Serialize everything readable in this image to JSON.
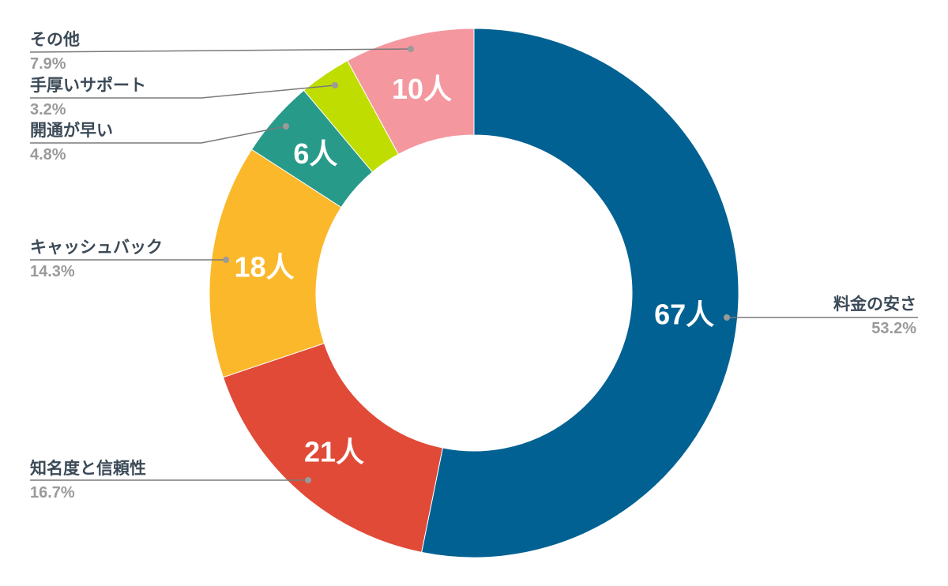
{
  "chart_data": {
    "type": "pie",
    "donut": true,
    "legend": "callouts",
    "slices": [
      {
        "name": "料金の安さ",
        "value": 67,
        "value_label": "67人",
        "percent_label": "53.2%",
        "color": "#006192"
      },
      {
        "name": "知名度と信頼性",
        "value": 21,
        "value_label": "21人",
        "percent_label": "16.7%",
        "color": "#e04a37"
      },
      {
        "name": "キャッシュバック",
        "value": 18,
        "value_label": "18人",
        "percent_label": "14.3%",
        "color": "#fbb82a"
      },
      {
        "name": "開通が早い",
        "value": 6,
        "value_label": "6人",
        "percent_label": "4.8%",
        "color": "#289a8a"
      },
      {
        "name": "手厚いサポート",
        "value": 4,
        "value_label": "",
        "percent_label": "3.2%",
        "color": "#bfdd00"
      },
      {
        "name": "その他",
        "value": 10,
        "value_label": "10人",
        "percent_label": "7.9%",
        "color": "#f4979e"
      }
    ]
  }
}
